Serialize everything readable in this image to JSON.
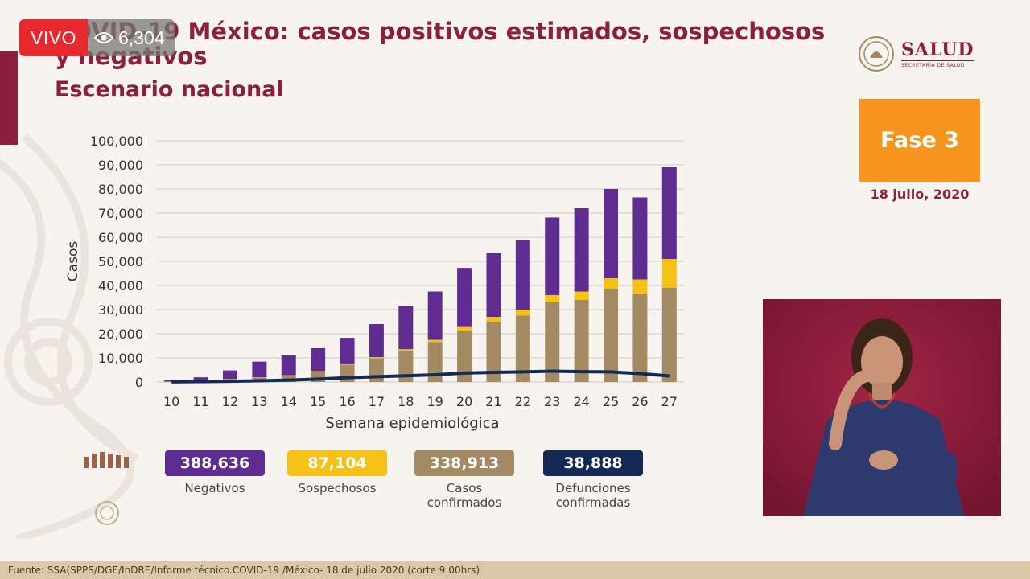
{
  "live": {
    "label": "VIVO",
    "views": "6,304"
  },
  "title": "COVID-19 México: casos positivos estimados, sospechosos y negativos",
  "subtitle": "Escenario nacional",
  "logo": {
    "name": "SALUD",
    "sub": "SECRETARÍA DE SALUD"
  },
  "phase": {
    "label": "Fase 3",
    "date": "18 julio, 2020"
  },
  "colors": {
    "negativos": "#5f2d91",
    "sospechosos": "#f5c116",
    "confirmados": "#a48a62",
    "defunciones": "#142a55",
    "accent": "#8a1f3e",
    "phase": "#f7941d"
  },
  "chart_data": {
    "type": "bar",
    "stacked": true,
    "xlabel": "Semana epidemiológica",
    "ylabel": "Casos",
    "ylim": [
      0,
      100000
    ],
    "yticks": [
      0,
      10000,
      20000,
      30000,
      40000,
      50000,
      60000,
      70000,
      80000,
      90000,
      100000
    ],
    "ytick_labels": [
      "0",
      "10,000",
      "20,000",
      "30,000",
      "40,000",
      "50,000",
      "60,000",
      "70,000",
      "80,000",
      "90,000",
      "100,000"
    ],
    "grid": true,
    "categories": [
      "10",
      "11",
      "12",
      "13",
      "14",
      "15",
      "16",
      "17",
      "18",
      "19",
      "20",
      "21",
      "22",
      "23",
      "24",
      "25",
      "26",
      "27"
    ],
    "series": [
      {
        "key": "confirmados",
        "values": [
          200,
          600,
          1200,
          1800,
          2600,
          4200,
          7000,
          9800,
          13000,
          16500,
          21000,
          25000,
          27500,
          33000,
          34000,
          38500,
          36500,
          39000
        ]
      },
      {
        "key": "sospechosos",
        "values": [
          0,
          50,
          100,
          150,
          200,
          300,
          300,
          500,
          600,
          1000,
          1800,
          2000,
          2500,
          3000,
          3500,
          4500,
          6000,
          12000
        ]
      },
      {
        "key": "negativos",
        "values": [
          500,
          1300,
          3500,
          6500,
          8200,
          9500,
          11000,
          13700,
          17800,
          20000,
          24500,
          26500,
          28800,
          32200,
          34500,
          37000,
          34000,
          38000
        ]
      },
      {
        "key": "defunciones",
        "type": "line",
        "values": [
          50,
          150,
          300,
          500,
          800,
          1200,
          1800,
          2200,
          2600,
          3000,
          3700,
          4000,
          4200,
          4500,
          4300,
          4200,
          3500,
          2500
        ]
      }
    ]
  },
  "legend": [
    {
      "key": "negativos",
      "value": "388,636",
      "label": "Negativos"
    },
    {
      "key": "sospechosos",
      "value": "87,104",
      "label": "Sospechosos"
    },
    {
      "key": "confirmados",
      "value": "338,913",
      "label": "Casos confirmados"
    },
    {
      "key": "defunciones",
      "value": "38,888",
      "label": "Defunciones confirmadas"
    }
  ],
  "footer": "Fuente: SSA(SPPS/DGE/InDRE/Informe técnico.COVID-19 /México- 18 de julio 2020 (corte 9:00hrs)"
}
